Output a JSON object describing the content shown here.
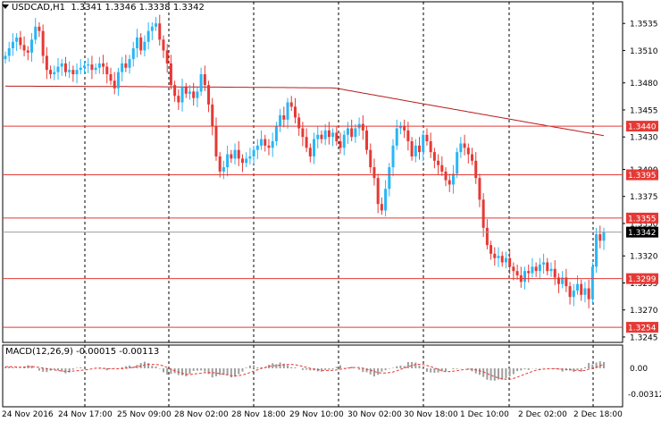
{
  "header": {
    "symbol_timeframe": "USDCAD,H1",
    "ohlc": "1.3341 1.3346 1.3338 1.3342"
  },
  "macd": {
    "label": "MACD(12,26,9) -0.00015 -0.00113",
    "scale_labels": [
      "0.00",
      "-0.00312"
    ]
  },
  "price_axis": {
    "labels": [
      "1.3535",
      "1.3510",
      "1.3480",
      "1.3455",
      "1.3430",
      "1.3400",
      "1.3375",
      "1.3350",
      "1.3320",
      "1.3295",
      "1.3270",
      "1.3245"
    ],
    "min": 1.324,
    "max": 1.3555
  },
  "levels": [
    {
      "value": 1.344,
      "label": "1.3440"
    },
    {
      "value": 1.3395,
      "label": "1.3395"
    },
    {
      "value": 1.3355,
      "label": "1.3355"
    },
    {
      "value": 1.3299,
      "label": "1.3299"
    },
    {
      "value": 1.3254,
      "label": "1.3254"
    }
  ],
  "current_price": {
    "value": 1.3342,
    "label": "1.3342"
  },
  "time_axis": {
    "labels": [
      "24 Nov 2016",
      "24 Nov 17:00",
      "25 Nov 09:00",
      "28 Nov 02:00",
      "28 Nov 18:00",
      "29 Nov 10:00",
      "30 Nov 02:00",
      "30 Nov 18:00",
      "1 Dec 10:00",
      "2 Dec 02:00",
      "2 Dec 18:00"
    ]
  },
  "colors": {
    "bull": "#29b6f6",
    "bear": "#e53935",
    "level": "#e53935",
    "ma": "#b71c1c",
    "grid": "#000000",
    "macd_hist": "#9e9e9e",
    "macd_signal": "#e53935"
  },
  "chart_data": {
    "type": "candlestick",
    "closes": [
      1.3505,
      1.3512,
      1.3518,
      1.3522,
      1.3515,
      1.351,
      1.3508,
      1.352,
      1.3532,
      1.3528,
      1.3505,
      1.3492,
      1.3488,
      1.349,
      1.3495,
      1.3498,
      1.349,
      1.3492,
      1.3488,
      1.3492,
      1.3494,
      1.3496,
      1.3497,
      1.3492,
      1.3494,
      1.3498,
      1.3495,
      1.3488,
      1.3482,
      1.3475,
      1.349,
      1.3498,
      1.3494,
      1.3502,
      1.3512,
      1.3522,
      1.351,
      1.3518,
      1.3528,
      1.3532,
      1.3535,
      1.352,
      1.351,
      1.3498,
      1.3478,
      1.3468,
      1.3462,
      1.3476,
      1.347,
      1.3472,
      1.3466,
      1.3472,
      1.3488,
      1.3478,
      1.346,
      1.344,
      1.3412,
      1.3398,
      1.3402,
      1.3414,
      1.341,
      1.3418,
      1.341,
      1.3406,
      1.341,
      1.3412,
      1.3418,
      1.3422,
      1.3428,
      1.3422,
      1.342,
      1.3426,
      1.344,
      1.345,
      1.3446,
      1.3462,
      1.3458,
      1.3448,
      1.3438,
      1.343,
      1.342,
      1.3412,
      1.3428,
      1.3432,
      1.3428,
      1.3436,
      1.343,
      1.3434,
      1.3426,
      1.342,
      1.3432,
      1.3438,
      1.343,
      1.3438,
      1.3442,
      1.3436,
      1.3418,
      1.3402,
      1.3392,
      1.3368,
      1.3362,
      1.3382,
      1.3402,
      1.3422,
      1.3438,
      1.344,
      1.3436,
      1.3426,
      1.3412,
      1.3422,
      1.3416,
      1.3432,
      1.3426,
      1.3416,
      1.3408,
      1.3404,
      1.3398,
      1.339,
      1.3386,
      1.3396,
      1.3416,
      1.3424,
      1.342,
      1.3414,
      1.3408,
      1.3392,
      1.3372,
      1.3346,
      1.333,
      1.3322,
      1.3318,
      1.332,
      1.3314,
      1.3318,
      1.331,
      1.3306,
      1.3302,
      1.3296,
      1.3306,
      1.3304,
      1.331,
      1.3306,
      1.3312,
      1.3314,
      1.3306,
      1.3308,
      1.33,
      1.3294,
      1.33,
      1.3292,
      1.3282,
      1.3288,
      1.3294,
      1.3284,
      1.329,
      1.328,
      1.331,
      1.334,
      1.3334,
      1.3342
    ]
  }
}
